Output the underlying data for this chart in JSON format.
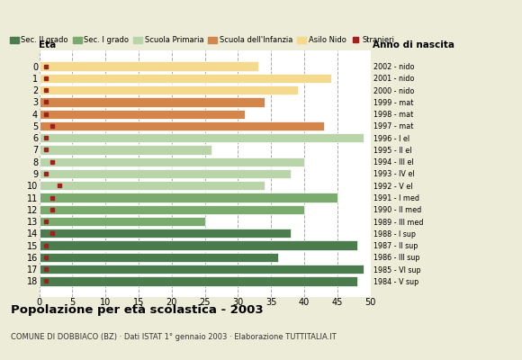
{
  "ages": [
    0,
    1,
    2,
    3,
    4,
    5,
    6,
    7,
    8,
    9,
    10,
    11,
    12,
    13,
    14,
    15,
    16,
    17,
    18
  ],
  "anno_nascita": [
    "2002 - nido",
    "2001 - nido",
    "2000 - nido",
    "1999 - mat",
    "1998 - mat",
    "1997 - mat",
    "1996 - I el",
    "1995 - II el",
    "1994 - III el",
    "1993 - IV el",
    "1992 - V el",
    "1991 - I med",
    "1990 - II med",
    "1989 - III med",
    "1988 - I sup",
    "1987 - II sup",
    "1986 - III sup",
    "1985 - VI sup",
    "1984 - V sup"
  ],
  "bar_values": [
    33,
    44,
    39,
    34,
    31,
    43,
    49,
    26,
    40,
    38,
    34,
    45,
    40,
    25,
    38,
    48,
    36,
    49,
    48
  ],
  "stranieri": [
    1,
    1,
    1,
    1,
    1,
    2,
    1,
    1,
    2,
    1,
    3,
    2,
    2,
    1,
    2,
    1,
    1,
    1,
    1
  ],
  "bar_colors": [
    "#f5d98c",
    "#f5d98c",
    "#f5d98c",
    "#d4854a",
    "#d4854a",
    "#d4854a",
    "#b8d4a8",
    "#b8d4a8",
    "#b8d4a8",
    "#b8d4a8",
    "#b8d4a8",
    "#7aaa6e",
    "#7aaa6e",
    "#7aaa6e",
    "#4a7c4e",
    "#4a7c4e",
    "#4a7c4e",
    "#4a7c4e",
    "#4a7c4e"
  ],
  "stranieri_color": "#a02020",
  "title": "Popolazione per età scolastica - 2003",
  "subtitle": "COMUNE DI DOBBIACO (BZ) · Dati ISTAT 1° gennaio 2003 · Elaborazione TUTTITALIA.IT",
  "eta_label": "Età",
  "anno_label": "Anno di nascita",
  "xlim": [
    0,
    50
  ],
  "xticks": [
    0,
    5,
    10,
    15,
    20,
    25,
    30,
    35,
    40,
    45,
    50
  ],
  "legend_labels": [
    "Sec. II grado",
    "Sec. I grado",
    "Scuola Primaria",
    "Scuola dell'Infanzia",
    "Asilo Nido",
    "Stranieri"
  ],
  "legend_colors": [
    "#4a7c4e",
    "#7aaa6e",
    "#b8d4a8",
    "#d4854a",
    "#f5d98c",
    "#a02020"
  ],
  "bg_color": "#edecd8",
  "plot_bg": "#ffffff"
}
